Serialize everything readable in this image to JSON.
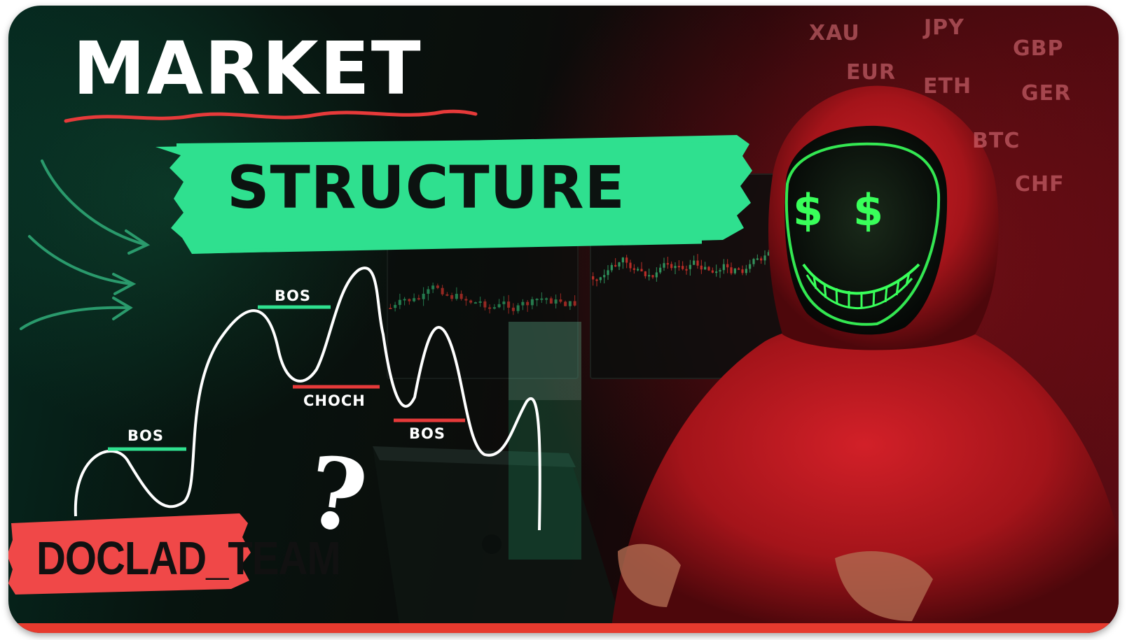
{
  "title": {
    "line1": "MARKET",
    "line2": "STRUCTURE"
  },
  "tickers": [
    "XAU",
    "JPY",
    "GBP",
    "EUR",
    "ETH",
    "GER",
    "BTC",
    "CHF"
  ],
  "chart_labels": {
    "bos_left": "BOS",
    "bos_top": "BOS",
    "choch": "CHOCH",
    "bos_right": "BOS"
  },
  "question_mark": "?",
  "badge": {
    "text": "DOCLAD_TEAM"
  },
  "mask_symbols": {
    "left_eye": "$",
    "right_eye": "$"
  },
  "colors": {
    "accent_green": "#2fe08f",
    "accent_red": "#e63a3a",
    "title_white": "#ffffff",
    "hoodie_red": "#b8161c",
    "mask_green": "#39ff5a"
  }
}
